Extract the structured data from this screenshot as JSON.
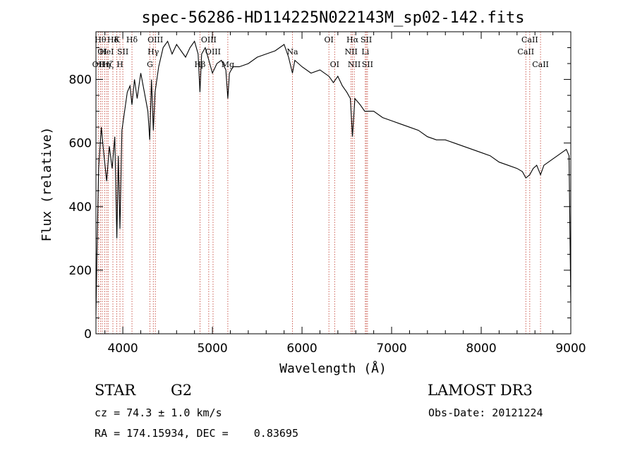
{
  "chart_data": {
    "type": "line",
    "title": "spec-56286-HD114225N022143M_sp02-142.fits",
    "xlabel": "Wavelength (Å)",
    "ylabel": "Flux (relative)",
    "xlim": [
      3700,
      9000
    ],
    "ylim": [
      0,
      950
    ],
    "xticks": [
      4000,
      5000,
      6000,
      7000,
      8000,
      9000
    ],
    "yticks": [
      0,
      200,
      400,
      600,
      800
    ],
    "grid": false,
    "series": [
      {
        "values_x": [
          3700,
          3710,
          3730,
          3760,
          3790,
          3820,
          3850,
          3880,
          3910,
          3933,
          3950,
          3968,
          3990,
          4020,
          4050,
          4080,
          4102,
          4130,
          4160,
          4200,
          4240,
          4280,
          4300,
          4320,
          4340,
          4360,
          4400,
          4450,
          4500,
          4550,
          4600,
          4650,
          4700,
          4750,
          4800,
          4840,
          4861,
          4880,
          4920,
          4960,
          5000,
          5050,
          5100,
          5150,
          5172,
          5190,
          5230,
          5300,
          5400,
          5500,
          5600,
          5700,
          5800,
          5850,
          5893,
          5920,
          6000,
          6100,
          6200,
          6300,
          6350,
          6400,
          6450,
          6500,
          6540,
          6563,
          6590,
          6650,
          6700,
          6800,
          6900,
          7000,
          7100,
          7200,
          7300,
          7400,
          7500,
          7600,
          7700,
          7800,
          7900,
          8000,
          8100,
          8200,
          8300,
          8400,
          8460,
          8498,
          8542,
          8580,
          8620,
          8662,
          8700,
          8750,
          8800,
          8850,
          8900,
          8950,
          8980,
          9000
        ],
        "values_y": [
          60,
          240,
          520,
          650,
          560,
          480,
          590,
          520,
          620,
          300,
          560,
          330,
          640,
          700,
          760,
          780,
          720,
          800,
          740,
          820,
          760,
          700,
          610,
          800,
          640,
          760,
          840,
          900,
          920,
          880,
          910,
          890,
          870,
          900,
          920,
          880,
          760,
          880,
          900,
          860,
          820,
          850,
          860,
          830,
          740,
          820,
          840,
          840,
          850,
          870,
          880,
          890,
          910,
          870,
          820,
          860,
          840,
          820,
          830,
          810,
          790,
          810,
          780,
          760,
          740,
          620,
          740,
          720,
          700,
          700,
          680,
          670,
          660,
          650,
          640,
          620,
          610,
          610,
          600,
          590,
          580,
          570,
          560,
          540,
          530,
          520,
          510,
          490,
          500,
          520,
          530,
          500,
          530,
          540,
          550,
          560,
          570,
          580,
          560,
          100
        ]
      }
    ],
    "line_markers": [
      {
        "wl": 3727,
        "label": "OII",
        "row": 3
      },
      {
        "wl": 3750,
        "label": "Hθ",
        "row": 1
      },
      {
        "wl": 3770,
        "label": "OI",
        "row": 2
      },
      {
        "wl": 3798,
        "label": "Hη",
        "row": 3
      },
      {
        "wl": 3820,
        "label": "HeI",
        "row": 2
      },
      {
        "wl": 3836,
        "label": "Hζ",
        "row": 3
      },
      {
        "wl": 3889,
        "label": "Hδ",
        "row": 1
      },
      {
        "wl": 3933,
        "label": "K",
        "row": 1
      },
      {
        "wl": 3968,
        "label": "H",
        "row": 3
      },
      {
        "wl": 4000,
        "label": "SII",
        "row": 2
      },
      {
        "wl": 4102,
        "label": "Hδ",
        "row": 1
      },
      {
        "wl": 4303,
        "label": "G",
        "row": 3
      },
      {
        "wl": 4340,
        "label": "Hγ",
        "row": 2
      },
      {
        "wl": 4363,
        "label": "OIII",
        "row": 1
      },
      {
        "wl": 4861,
        "label": "Hβ",
        "row": 3
      },
      {
        "wl": 4959,
        "label": "OIII",
        "row": 1
      },
      {
        "wl": 5007,
        "label": "OIII",
        "row": 2
      },
      {
        "wl": 5172,
        "label": "Mg",
        "row": 3
      },
      {
        "wl": 5893,
        "label": "Na",
        "row": 2
      },
      {
        "wl": 6300,
        "label": "OI",
        "row": 1
      },
      {
        "wl": 6364,
        "label": "OI",
        "row": 3
      },
      {
        "wl": 6548,
        "label": "NII",
        "row": 2
      },
      {
        "wl": 6563,
        "label": "Hα",
        "row": 1
      },
      {
        "wl": 6583,
        "label": "NII",
        "row": 3
      },
      {
        "wl": 6707,
        "label": "Li",
        "row": 2
      },
      {
        "wl": 6717,
        "label": "SII",
        "row": 1
      },
      {
        "wl": 6731,
        "label": "SII",
        "row": 3
      },
      {
        "wl": 8498,
        "label": "CaII",
        "row": 2
      },
      {
        "wl": 8542,
        "label": "CaII",
        "row": 1
      },
      {
        "wl": 8662,
        "label": "CaII",
        "row": 3
      }
    ]
  },
  "info": {
    "object_class": "STAR",
    "subclass": "G2",
    "survey": "LAMOST DR3",
    "cz": "cz = 74.3 ± 1.0 km/s",
    "obs_date": "Obs-Date: 20121224",
    "radec": "RA = 174.15934, DEC =    0.83695"
  }
}
